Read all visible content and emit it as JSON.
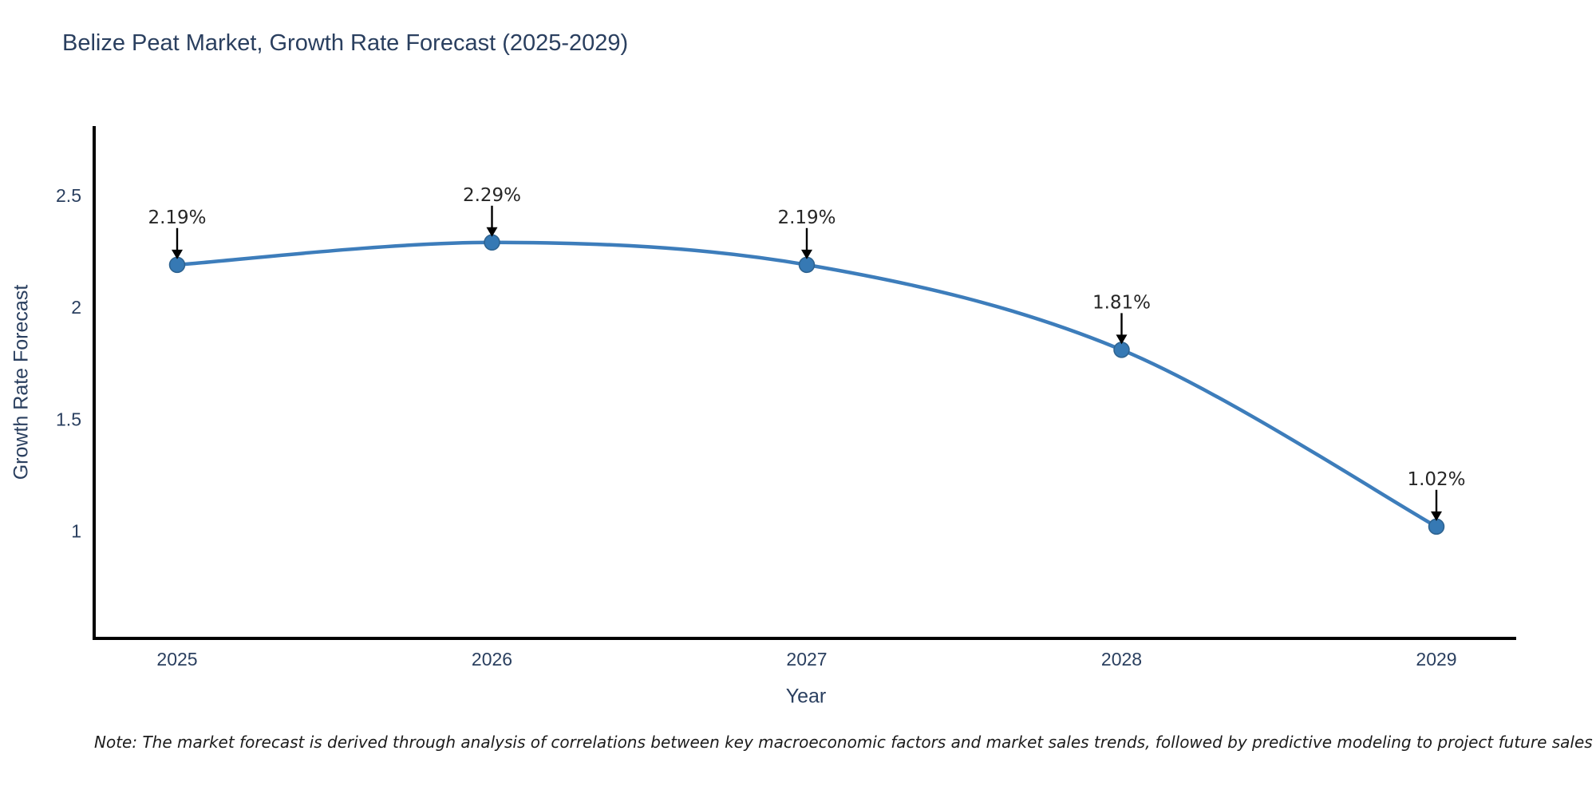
{
  "chart_data": {
    "type": "line",
    "title": "Belize Peat Market, Growth Rate Forecast (2025-2029)",
    "xlabel": "Year",
    "ylabel": "Growth Rate Forecast",
    "x": [
      2025,
      2026,
      2027,
      2028,
      2029
    ],
    "xtick_labels": [
      "2025",
      "2026",
      "2027",
      "2028",
      "2029"
    ],
    "values": [
      2.19,
      2.29,
      2.19,
      1.81,
      1.02
    ],
    "point_labels": [
      "2.19%",
      "2.29%",
      "2.19%",
      "1.81%",
      "1.02%"
    ],
    "yticks": [
      1,
      1.5,
      2,
      2.5
    ],
    "ytick_labels": [
      "1",
      "1.5",
      "2",
      "2.5"
    ],
    "ylim": [
      0.52,
      2.81
    ],
    "line_shape": "spline",
    "grid": false,
    "legend_position": "none",
    "line_color": "#3d7dbb",
    "marker_color": "#3679b4",
    "marker_edge_color": "#2d628f",
    "axis_line_color": "#000000",
    "annotation_arrow_color": "#000000",
    "text_color": "#2a3f5f",
    "background_color": "#ffffff"
  },
  "note": "Note: The market forecast is derived through analysis of correlations between key macroeconomic factors and market sales trends, followed by predictive modeling to project future sales"
}
